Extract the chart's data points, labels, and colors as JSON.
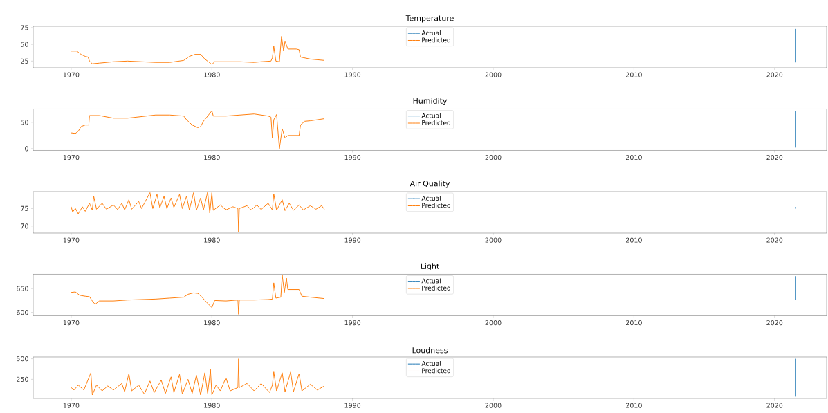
{
  "chart_data": [
    {
      "type": "line",
      "title": "Temperature",
      "xlim": [
        1967.3,
        2023.7
      ],
      "xticks": [
        1970,
        1980,
        1990,
        2000,
        2010,
        2020
      ],
      "ylim": [
        15,
        77
      ],
      "yticks": [
        25,
        50,
        75
      ],
      "legend": "top",
      "series": [
        {
          "name": "Actual",
          "color": "#1f77b4",
          "x": [
            2021.5,
            2021.5
          ],
          "values": [
            23,
            73
          ]
        },
        {
          "name": "Predicted",
          "color": "#ff7f0e",
          "x": [
            1970.0,
            1970.4,
            1970.7,
            1971.0,
            1971.2,
            1971.3,
            1971.5,
            1972.0,
            1973.0,
            1974.0,
            1975.0,
            1976.0,
            1977.0,
            1978.0,
            1978.4,
            1978.8,
            1979.2,
            1979.5,
            1980.0,
            1980.2,
            1981.0,
            1982.0,
            1983.0,
            1983.5,
            1984.2,
            1984.3,
            1984.4,
            1984.55,
            1984.8,
            1984.95,
            1985.1,
            1985.2,
            1985.4,
            1986.0,
            1986.2,
            1986.3,
            1987.0,
            1988.0
          ],
          "values": [
            40,
            40,
            35,
            32,
            31,
            25,
            21,
            22,
            24,
            25,
            24,
            23,
            23,
            26,
            32,
            35,
            35,
            28,
            20,
            24,
            24,
            24,
            23,
            24,
            25,
            30,
            47,
            25,
            24,
            62,
            40,
            55,
            43,
            43,
            42,
            31,
            28,
            26
          ]
        }
      ]
    },
    {
      "type": "line",
      "title": "Humidity",
      "xlim": [
        1967.3,
        2023.7
      ],
      "xticks": [
        1970,
        1980,
        1990,
        2000,
        2010,
        2020
      ],
      "ylim": [
        -3.5,
        75.5
      ],
      "yticks": [
        0,
        50
      ],
      "legend": "top",
      "series": [
        {
          "name": "Actual",
          "color": "#1f77b4",
          "x": [
            2021.5,
            2021.5
          ],
          "values": [
            2,
            72
          ]
        },
        {
          "name": "Predicted",
          "color": "#ff7f0e",
          "x": [
            1970.0,
            1970.3,
            1970.5,
            1970.7,
            1971.0,
            1971.25,
            1971.3,
            1972.0,
            1973.0,
            1974.0,
            1975.0,
            1976.0,
            1977.0,
            1978.0,
            1978.2,
            1978.6,
            1979.0,
            1979.2,
            1979.4,
            1979.7,
            1980.0,
            1980.1,
            1981.0,
            1982.0,
            1983.0,
            1984.0,
            1984.2,
            1984.3,
            1984.4,
            1984.6,
            1984.8,
            1985.0,
            1985.2,
            1985.4,
            1986.2,
            1986.3,
            1986.6,
            1987.0,
            1988.0
          ],
          "values": [
            30,
            29,
            33,
            42,
            45,
            45,
            63,
            63,
            58,
            58,
            61,
            64,
            64,
            62,
            55,
            45,
            40,
            42,
            52,
            62,
            72,
            62,
            62,
            64,
            66,
            62,
            60,
            20,
            55,
            65,
            0,
            38,
            20,
            25,
            25,
            45,
            52,
            53,
            57
          ]
        }
      ]
    },
    {
      "type": "line",
      "title": "Air Quality",
      "xlim": [
        1967.3,
        2023.7
      ],
      "xticks": [
        1970,
        1980,
        1990,
        2000,
        2010,
        2020
      ],
      "ylim": [
        68,
        79.8
      ],
      "yticks": [
        70,
        75
      ],
      "legend": "top",
      "series": [
        {
          "name": "Actual",
          "color": "#1f77b4",
          "marker": "circle",
          "x": [
            2021.5
          ],
          "values": [
            75.2
          ]
        },
        {
          "name": "Predicted",
          "color": "#ff7f0e",
          "x": [
            1970.0,
            1970.1,
            1970.3,
            1970.5,
            1970.8,
            1971.0,
            1971.3,
            1971.5,
            1971.6,
            1971.8,
            1972.2,
            1972.5,
            1973.0,
            1973.3,
            1973.6,
            1973.8,
            1974.1,
            1974.3,
            1974.8,
            1975.0,
            1975.6,
            1975.8,
            1976.1,
            1976.3,
            1976.6,
            1976.8,
            1977.1,
            1977.3,
            1977.7,
            1977.9,
            1978.2,
            1978.4,
            1978.7,
            1978.9,
            1979.2,
            1979.4,
            1979.7,
            1979.85,
            1980.0,
            1980.1,
            1980.6,
            1981.0,
            1981.5,
            1981.85,
            1981.9,
            1981.95,
            1982.5,
            1982.8,
            1983.2,
            1983.5,
            1984.0,
            1984.3,
            1984.4,
            1984.6,
            1985.0,
            1985.2,
            1985.5,
            1985.8,
            1986.2,
            1986.5,
            1987.0,
            1987.4,
            1987.8,
            1988.0
          ],
          "values": [
            75.5,
            74.0,
            75.0,
            73.5,
            75.5,
            74.2,
            76.5,
            74.5,
            78.5,
            74.8,
            76.5,
            74.8,
            76.0,
            74.7,
            76.5,
            74.6,
            77.5,
            74.8,
            77.0,
            75.0,
            79.5,
            75.0,
            79.0,
            75.2,
            78.5,
            75.0,
            78.0,
            75.3,
            79.0,
            75.0,
            78.5,
            74.6,
            79.5,
            74.5,
            78.0,
            74.6,
            79.7,
            73.7,
            79.5,
            74.5,
            76.0,
            74.6,
            75.5,
            75.0,
            68.3,
            75.0,
            75.8,
            74.6,
            76.0,
            74.7,
            76.5,
            74.6,
            79.2,
            74.5,
            77.5,
            74.4,
            76.5,
            74.5,
            76.0,
            74.6,
            75.8,
            74.8,
            75.8,
            74.8
          ]
        }
      ]
    },
    {
      "type": "line",
      "title": "Light",
      "xlim": [
        1967.3,
        2023.7
      ],
      "xticks": [
        1970,
        1980,
        1990,
        2000,
        2010,
        2020
      ],
      "ylim": [
        593,
        680
      ],
      "yticks": [
        600,
        650
      ],
      "legend": "top",
      "series": [
        {
          "name": "Actual",
          "color": "#1f77b4",
          "x": [
            2021.5,
            2021.5
          ],
          "values": [
            626,
            676
          ]
        },
        {
          "name": "Predicted",
          "color": "#ff7f0e",
          "x": [
            1970.0,
            1970.3,
            1970.6,
            1971.0,
            1971.3,
            1971.5,
            1971.7,
            1972.0,
            1973.0,
            1974.0,
            1975.0,
            1976.0,
            1977.0,
            1978.0,
            1978.3,
            1978.7,
            1979.0,
            1979.3,
            1979.6,
            1980.0,
            1980.2,
            1981.0,
            1981.85,
            1981.9,
            1981.95,
            1983.0,
            1984.0,
            1984.3,
            1984.4,
            1984.55,
            1984.9,
            1985.0,
            1985.15,
            1985.3,
            1985.4,
            1986.0,
            1986.2,
            1986.4,
            1987.0,
            1988.0
          ],
          "values": [
            642,
            643,
            636,
            634,
            633,
            624,
            617,
            624,
            624,
            626,
            627,
            628,
            630,
            632,
            638,
            641,
            640,
            632,
            622,
            610,
            625,
            624,
            626,
            596,
            626,
            626,
            627,
            628,
            662,
            630,
            632,
            678,
            642,
            672,
            648,
            648,
            648,
            634,
            632,
            629
          ]
        }
      ]
    },
    {
      "type": "line",
      "title": "Loudness",
      "xlim": [
        1967.3,
        2023.7
      ],
      "xticks": [
        1970,
        1980,
        1990,
        2000,
        2010,
        2020
      ],
      "ylim": [
        18,
        522
      ],
      "yticks": [
        250,
        500
      ],
      "legend": "top",
      "series": [
        {
          "name": "Actual",
          "color": "#1f77b4",
          "x": [
            2021.5,
            2021.5
          ],
          "values": [
            40,
            500
          ]
        },
        {
          "name": "Predicted",
          "color": "#ff7f0e",
          "x": [
            1970.0,
            1970.2,
            1970.5,
            1970.9,
            1971.4,
            1971.5,
            1971.8,
            1972.2,
            1972.6,
            1973.0,
            1973.6,
            1973.8,
            1974.1,
            1974.3,
            1974.8,
            1975.2,
            1975.6,
            1975.9,
            1976.4,
            1976.7,
            1977.1,
            1977.3,
            1977.7,
            1977.9,
            1978.3,
            1978.6,
            1978.9,
            1979.2,
            1979.5,
            1979.7,
            1979.9,
            1980.0,
            1980.3,
            1980.6,
            1981.0,
            1981.3,
            1981.85,
            1981.9,
            1981.95,
            1982.5,
            1983.0,
            1983.5,
            1984.1,
            1984.3,
            1984.4,
            1984.6,
            1985.0,
            1985.2,
            1985.6,
            1985.8,
            1986.2,
            1986.4,
            1987.0,
            1987.5,
            1988.0
          ],
          "values": [
            150,
            120,
            180,
            120,
            330,
            60,
            180,
            110,
            170,
            120,
            200,
            100,
            320,
            110,
            180,
            70,
            230,
            90,
            240,
            80,
            280,
            90,
            310,
            70,
            250,
            80,
            300,
            60,
            330,
            80,
            370,
            60,
            180,
            110,
            270,
            110,
            150,
            500,
            150,
            200,
            110,
            200,
            90,
            180,
            340,
            110,
            330,
            100,
            340,
            100,
            320,
            110,
            190,
            120,
            170
          ]
        }
      ]
    }
  ]
}
